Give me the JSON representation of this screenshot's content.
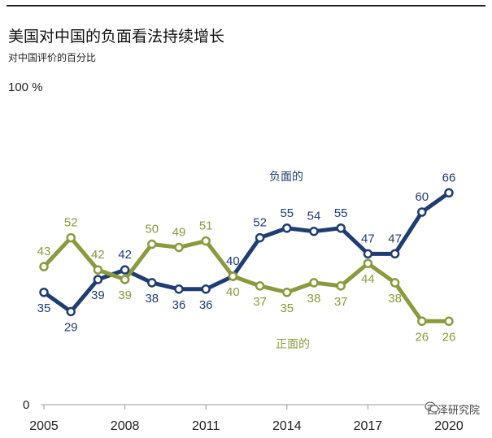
{
  "title": "美国对中国的负面看法持续增长",
  "subtitle": "对中国评价的百分比",
  "watermark": "西泽研究院",
  "chart_data": {
    "type": "line",
    "title": "美国对中国的负面看法持续增长",
    "subtitle": "对中国评价的百分比",
    "x": [
      2005,
      2006,
      2007,
      2008,
      2009,
      2010,
      2011,
      2012,
      2013,
      2014,
      2015,
      2016,
      2017,
      2018,
      2019,
      2020
    ],
    "x_tick_labels": [
      "2005",
      "2008",
      "2011",
      "2014",
      "2017",
      "2020"
    ],
    "y_tick_labels": [
      "0",
      "100 %"
    ],
    "ylim": [
      0,
      100
    ],
    "series": [
      {
        "name": "负面的",
        "color": "#1f3d73",
        "values": [
          35,
          29,
          39,
          42,
          38,
          36,
          36,
          40,
          52,
          55,
          54,
          55,
          47,
          47,
          60,
          66
        ],
        "value_labels": [
          "35",
          "29",
          "39",
          "42",
          "38",
          "36",
          "36",
          "",
          "52",
          "55",
          "54",
          "55",
          "47",
          "47",
          "60",
          "66"
        ]
      },
      {
        "name": "正面的",
        "color": "#8a9a3c",
        "values": [
          43,
          52,
          42,
          39,
          50,
          49,
          51,
          40,
          37,
          35,
          38,
          37,
          44,
          38,
          26,
          26
        ],
        "value_labels": [
          "43",
          "52",
          "42",
          "39",
          "50",
          "49",
          "51",
          "40",
          "37",
          "35",
          "38",
          "37",
          "44",
          "38",
          "26",
          "26"
        ]
      }
    ],
    "shared_label": "40",
    "grid": false
  }
}
